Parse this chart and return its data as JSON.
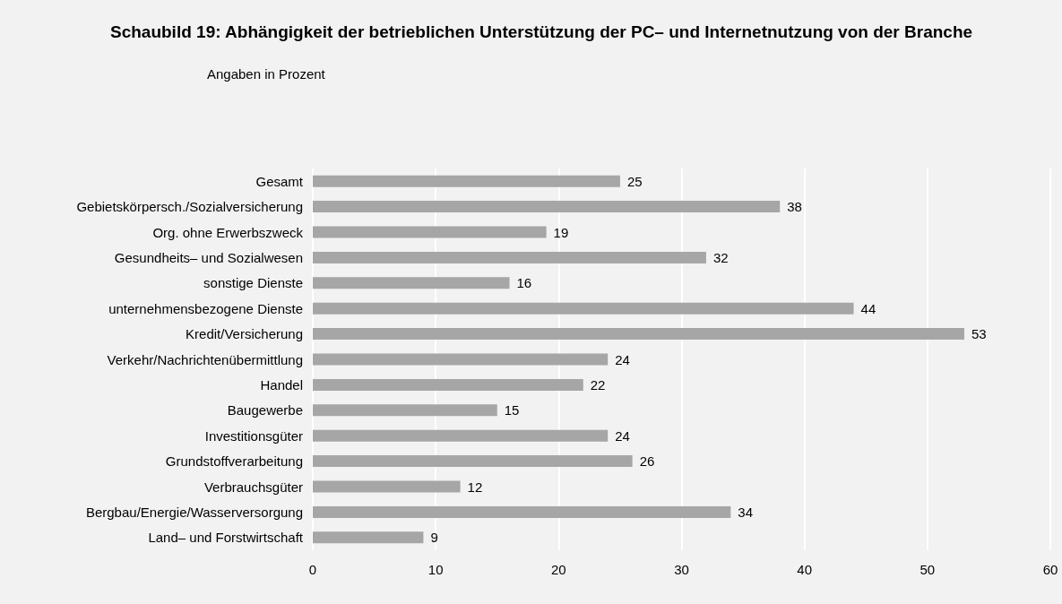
{
  "chart_data": {
    "type": "bar",
    "orientation": "horizontal",
    "title": "Schaubild 19: Abhängigkeit der betrieblichen Unterstützung der PC– und Internetnutzung von der Branche",
    "subtitle": "Angaben in Prozent",
    "categories": [
      "Gesamt",
      "Gebietskörpersch./Sozialversicherung",
      "Org. ohne Erwerbszweck",
      "Gesundheits– und Sozialwesen",
      "sonstige Dienste",
      "unternehmensbezogene Dienste",
      "Kredit/Versicherung",
      "Verkehr/Nachrichtenübermittlung",
      "Handel",
      "Baugewerbe",
      "Investitionsgüter",
      "Grundstoffverarbeitung",
      "Verbrauchsgüter",
      "Bergbau/Energie/Wasserversorgung",
      "Land– und Forstwirtschaft"
    ],
    "values": [
      25,
      38,
      19,
      32,
      16,
      44,
      53,
      24,
      22,
      15,
      24,
      26,
      12,
      34,
      9
    ],
    "color": "#a6a6a6",
    "xlim": [
      0,
      60
    ],
    "xticks": [
      0,
      10,
      20,
      30,
      40,
      50,
      60
    ],
    "grid": "x",
    "data_labels": true
  }
}
